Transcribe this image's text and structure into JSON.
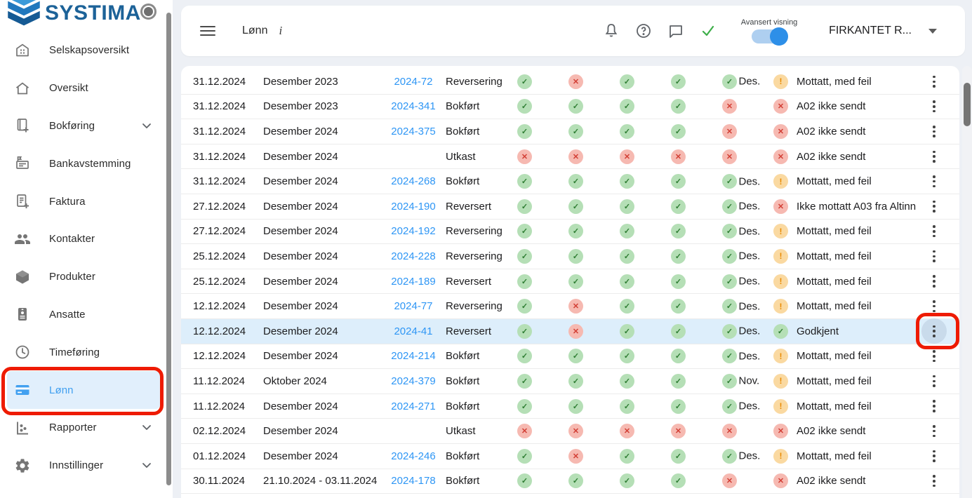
{
  "colors": {
    "accent": "#2e96f5",
    "ok-bg": "#b5dfb6",
    "ok-fg": "#2e7d32",
    "err-bg": "#f6b9b1",
    "err-fg": "#d23f35",
    "warn-bg": "#fad9a1",
    "warn-fg": "#e98a00",
    "annotation": "#ee1b02",
    "row-hl": "#ddeefb"
  },
  "sidebar": {
    "logo_text": "SYSTIMA",
    "items": [
      {
        "label": "Selskapsoversikt",
        "icon": "building-icon"
      },
      {
        "label": "Oversikt",
        "icon": "home-icon"
      },
      {
        "label": "Bokføring",
        "icon": "book-plus-icon",
        "chevron": true
      },
      {
        "label": "Bankavstemming",
        "icon": "bank-icon"
      },
      {
        "label": "Faktura",
        "icon": "invoice-plus-icon"
      },
      {
        "label": "Kontakter",
        "icon": "people-icon"
      },
      {
        "label": "Produkter",
        "icon": "cube-icon"
      },
      {
        "label": "Ansatte",
        "icon": "id-badge-icon"
      },
      {
        "label": "Timeføring",
        "icon": "clock-icon"
      },
      {
        "label": "Lønn",
        "icon": "credit-card-icon",
        "active": true,
        "annotated": true
      },
      {
        "label": "Rapporter",
        "icon": "bar-chart-icon",
        "chevron": true
      },
      {
        "label": "Innstillinger",
        "icon": "gear-icon",
        "chevron": true
      }
    ]
  },
  "topbar": {
    "title": "Lønn",
    "info_glyph": "i",
    "icons": [
      "bell-icon",
      "help-icon",
      "chat-icon",
      "check-icon"
    ],
    "toggle_label": "Avansert visning",
    "toggle_on": true,
    "company": "FIRKANTET R..."
  },
  "table": {
    "rows": [
      {
        "date": "31.12.2024",
        "period": "Desember 2023",
        "id": "2024-72",
        "status": "Reversering",
        "icons": [
          "ok",
          "err",
          "ok",
          "ok",
          "ok"
        ],
        "month": "Des.",
        "result_state": "warn",
        "result_text": "Mottatt, med feil"
      },
      {
        "date": "31.12.2024",
        "period": "Desember 2023",
        "id": "2024-341",
        "status": "Bokført",
        "icons": [
          "ok",
          "ok",
          "ok",
          "ok",
          "err"
        ],
        "month": "",
        "result_state": "err",
        "result_text": "A02 ikke sendt"
      },
      {
        "date": "31.12.2024",
        "period": "Desember 2024",
        "id": "2024-375",
        "status": "Bokført",
        "icons": [
          "ok",
          "ok",
          "ok",
          "ok",
          "err"
        ],
        "month": "",
        "result_state": "err",
        "result_text": "A02 ikke sendt"
      },
      {
        "date": "31.12.2024",
        "period": "Desember 2024",
        "id": "",
        "status": "Utkast",
        "icons": [
          "err",
          "err",
          "err",
          "err",
          "err"
        ],
        "month": "",
        "result_state": "err",
        "result_text": "A02 ikke sendt"
      },
      {
        "date": "31.12.2024",
        "period": "Desember 2024",
        "id": "2024-268",
        "status": "Bokført",
        "icons": [
          "ok",
          "ok",
          "ok",
          "ok",
          "ok"
        ],
        "month": "Des.",
        "result_state": "warn",
        "result_text": "Mottatt, med feil"
      },
      {
        "date": "27.12.2024",
        "period": "Desember 2024",
        "id": "2024-190",
        "status": "Reversert",
        "icons": [
          "ok",
          "ok",
          "ok",
          "ok",
          "ok"
        ],
        "month": "Des.",
        "result_state": "err",
        "result_text": "Ikke mottatt A03 fra Altinn"
      },
      {
        "date": "27.12.2024",
        "period": "Desember 2024",
        "id": "2024-192",
        "status": "Reversering",
        "icons": [
          "ok",
          "ok",
          "ok",
          "ok",
          "ok"
        ],
        "month": "Des.",
        "result_state": "warn",
        "result_text": "Mottatt, med feil"
      },
      {
        "date": "25.12.2024",
        "period": "Desember 2024",
        "id": "2024-228",
        "status": "Reversering",
        "icons": [
          "ok",
          "ok",
          "ok",
          "ok",
          "ok"
        ],
        "month": "Des.",
        "result_state": "warn",
        "result_text": "Mottatt, med feil"
      },
      {
        "date": "25.12.2024",
        "period": "Desember 2024",
        "id": "2024-189",
        "status": "Reversert",
        "icons": [
          "ok",
          "ok",
          "ok",
          "ok",
          "ok"
        ],
        "month": "Des.",
        "result_state": "warn",
        "result_text": "Mottatt, med feil"
      },
      {
        "date": "12.12.2024",
        "period": "Desember 2024",
        "id": "2024-77",
        "status": "Reversering",
        "icons": [
          "ok",
          "err",
          "ok",
          "ok",
          "ok"
        ],
        "month": "Des.",
        "result_state": "warn",
        "result_text": "Mottatt, med feil"
      },
      {
        "date": "12.12.2024",
        "period": "Desember 2024",
        "id": "2024-41",
        "status": "Reversert",
        "icons": [
          "ok",
          "err",
          "ok",
          "ok",
          "ok"
        ],
        "month": "Des.",
        "result_state": "ok",
        "result_text": "Godkjent",
        "highlighted": true,
        "kebab_annotated": true
      },
      {
        "date": "12.12.2024",
        "period": "Desember 2024",
        "id": "2024-214",
        "status": "Bokført",
        "icons": [
          "ok",
          "ok",
          "ok",
          "ok",
          "ok"
        ],
        "month": "Des.",
        "result_state": "warn",
        "result_text": "Mottatt, med feil"
      },
      {
        "date": "11.12.2024",
        "period": "Oktober 2024",
        "id": "2024-379",
        "status": "Bokført",
        "icons": [
          "ok",
          "ok",
          "ok",
          "ok",
          "ok"
        ],
        "month": "Nov.",
        "result_state": "warn",
        "result_text": "Mottatt, med feil"
      },
      {
        "date": "11.12.2024",
        "period": "Desember 2024",
        "id": "2024-271",
        "status": "Bokført",
        "icons": [
          "ok",
          "ok",
          "ok",
          "ok",
          "ok"
        ],
        "month": "Des.",
        "result_state": "warn",
        "result_text": "Mottatt, med feil"
      },
      {
        "date": "02.12.2024",
        "period": "Desember 2024",
        "id": "",
        "status": "Utkast",
        "icons": [
          "err",
          "err",
          "err",
          "err",
          "err"
        ],
        "month": "",
        "result_state": "err",
        "result_text": "A02 ikke sendt"
      },
      {
        "date": "01.12.2024",
        "period": "Desember 2024",
        "id": "2024-246",
        "status": "Bokført",
        "icons": [
          "ok",
          "err",
          "ok",
          "ok",
          "ok"
        ],
        "month": "Des.",
        "result_state": "warn",
        "result_text": "Mottatt, med feil"
      },
      {
        "date": "30.11.2024",
        "period": "21.10.2024 - 03.11.2024",
        "id": "2024-178",
        "status": "Bokført",
        "icons": [
          "ok",
          "ok",
          "ok",
          "ok",
          "err"
        ],
        "month": "",
        "result_state": "err",
        "result_text": "A02 ikke sendt"
      }
    ],
    "badge_glyphs": {
      "ok": "✓",
      "err": "✕",
      "warn": "!"
    }
  }
}
